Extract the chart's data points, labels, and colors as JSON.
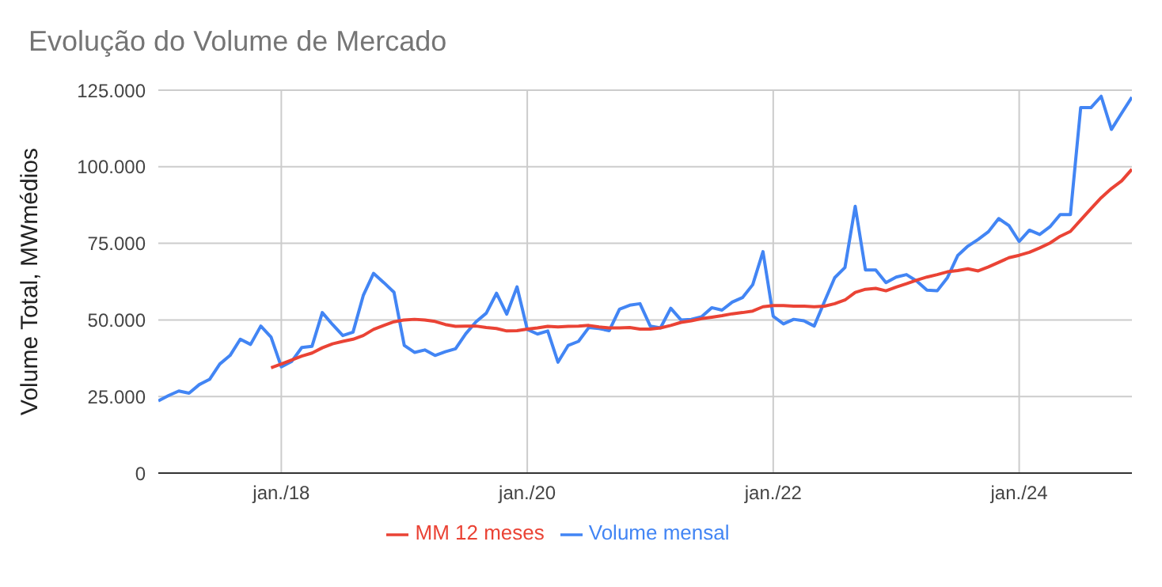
{
  "chart_data": {
    "type": "line",
    "title": "Evolução do Volume de Mercado",
    "ylabel": "Volume Total, MWmédios",
    "x": [
      "2017-01",
      "2017-02",
      "2017-03",
      "2017-04",
      "2017-05",
      "2017-06",
      "2017-07",
      "2017-08",
      "2017-09",
      "2017-10",
      "2017-11",
      "2017-12",
      "2018-01",
      "2018-02",
      "2018-03",
      "2018-04",
      "2018-05",
      "2018-06",
      "2018-07",
      "2018-08",
      "2018-09",
      "2018-10",
      "2018-11",
      "2018-12",
      "2019-01",
      "2019-02",
      "2019-03",
      "2019-04",
      "2019-05",
      "2019-06",
      "2019-07",
      "2019-08",
      "2019-09",
      "2019-10",
      "2019-11",
      "2019-12",
      "2020-01",
      "2020-02",
      "2020-03",
      "2020-04",
      "2020-05",
      "2020-06",
      "2020-07",
      "2020-08",
      "2020-09",
      "2020-10",
      "2020-11",
      "2020-12",
      "2021-01",
      "2021-02",
      "2021-03",
      "2021-04",
      "2021-05",
      "2021-06",
      "2021-07",
      "2021-08",
      "2021-09",
      "2021-10",
      "2021-11",
      "2021-12",
      "2022-01",
      "2022-02",
      "2022-03",
      "2022-04",
      "2022-05",
      "2022-06",
      "2022-07",
      "2022-08",
      "2022-09",
      "2022-10",
      "2022-11",
      "2022-12",
      "2023-01",
      "2023-02",
      "2023-03",
      "2023-04",
      "2023-05",
      "2023-06",
      "2023-07",
      "2023-08",
      "2023-09",
      "2023-10",
      "2023-11",
      "2023-12",
      "2024-01",
      "2024-02",
      "2024-03",
      "2024-04",
      "2024-05",
      "2024-06",
      "2024-07",
      "2024-08",
      "2024-09",
      "2024-10",
      "2024-11",
      "2024-12"
    ],
    "series": [
      {
        "name": "Volume mensal",
        "color": "#4285f4",
        "values": [
          23600,
          25300,
          26800,
          26100,
          28900,
          30600,
          35600,
          38400,
          43700,
          42000,
          48000,
          44400,
          34700,
          36400,
          41000,
          41400,
          52400,
          48500,
          44900,
          46000,
          58000,
          65200,
          62200,
          59000,
          41700,
          39400,
          40200,
          38400,
          39600,
          40600,
          45500,
          49400,
          52200,
          58700,
          51900,
          60800,
          46900,
          45400,
          46400,
          36200,
          41700,
          43000,
          47500,
          47200,
          46500,
          53500,
          54800,
          55300,
          48000,
          47400,
          53800,
          50000,
          50200,
          51000,
          54000,
          53200,
          55800,
          57300,
          61500,
          72300,
          51200,
          48700,
          50200,
          49700,
          48000,
          56000,
          63800,
          67100,
          87100,
          66300,
          66300,
          62200,
          64000,
          64800,
          62700,
          59700,
          59500,
          63800,
          71000,
          74100,
          76300,
          78800,
          83100,
          80800,
          75600,
          79300,
          77900,
          80400,
          84400,
          84400,
          119300,
          119300,
          123000,
          112200,
          117500,
          122700
        ]
      },
      {
        "name": "MM 12 meses",
        "color": "#ea4335",
        "values": [
          null,
          null,
          null,
          null,
          null,
          null,
          null,
          null,
          null,
          null,
          null,
          34400,
          35600,
          36900,
          38200,
          39200,
          40900,
          42200,
          43000,
          43700,
          44900,
          46900,
          48200,
          49400,
          50000,
          50200,
          50000,
          49500,
          48500,
          47900,
          48000,
          48000,
          47500,
          47200,
          46400,
          46500,
          47000,
          47400,
          47900,
          47700,
          47900,
          48000,
          48200,
          47700,
          47400,
          47400,
          47500,
          47000,
          47000,
          47400,
          48200,
          49200,
          49700,
          50400,
          50900,
          51400,
          52000,
          52400,
          52900,
          54300,
          54700,
          54700,
          54500,
          54500,
          54300,
          54500,
          55300,
          56500,
          59000,
          60000,
          60300,
          59500,
          60700,
          61800,
          63000,
          64000,
          64800,
          65700,
          66100,
          66700,
          66000,
          67300,
          68800,
          70300,
          71100,
          72100,
          73500,
          75100,
          77300,
          78900,
          82600,
          86300,
          89900,
          92900,
          95400,
          99200
        ]
      }
    ],
    "xlim": [
      "2017-01",
      "2024-12"
    ],
    "xticks": [
      {
        "value": "2018-01",
        "label": "jan./18"
      },
      {
        "value": "2020-01",
        "label": "jan./20"
      },
      {
        "value": "2022-01",
        "label": "jan./22"
      },
      {
        "value": "2024-01",
        "label": "jan./24"
      }
    ],
    "ylim": [
      0,
      125000
    ],
    "yticks": [
      {
        "value": 0,
        "label": "0"
      },
      {
        "value": 25000,
        "label": "25.000"
      },
      {
        "value": 50000,
        "label": "50.000"
      },
      {
        "value": 75000,
        "label": "75.000"
      },
      {
        "value": 100000,
        "label": "100.000"
      },
      {
        "value": 125000,
        "label": "125.000"
      }
    ],
    "grid": true,
    "legend": "bottom",
    "marker": "none",
    "line_style": "solid"
  }
}
